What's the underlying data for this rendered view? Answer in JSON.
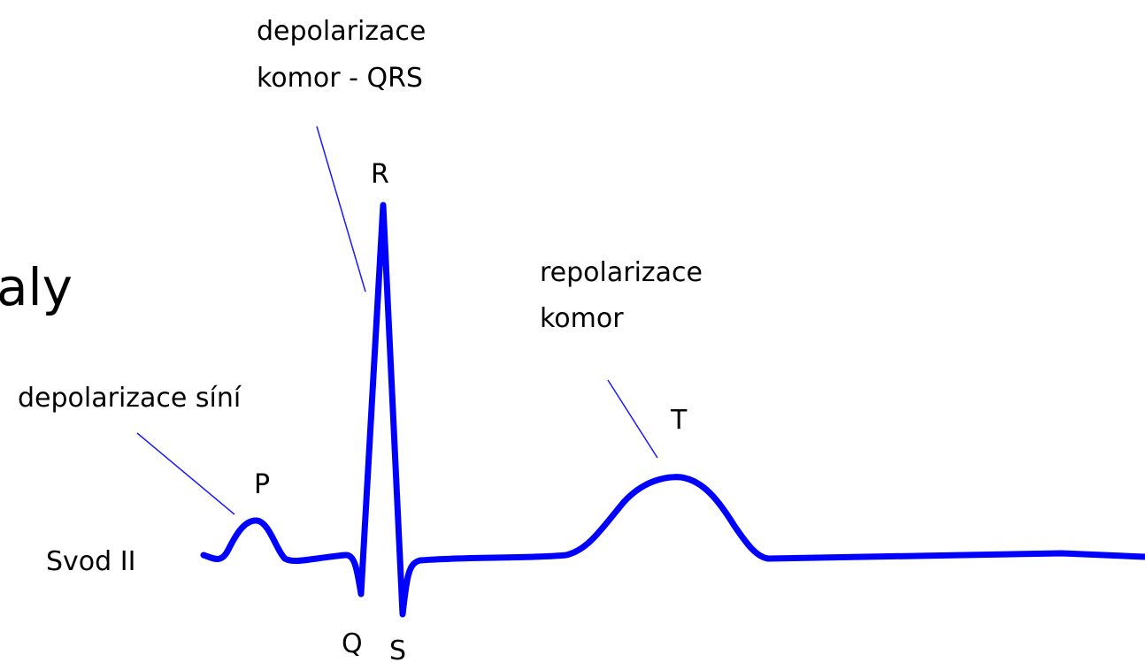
{
  "title_fragment": "aly",
  "lead": "Svod II",
  "waves": {
    "p": "P",
    "q": "Q",
    "r": "R",
    "s": "S",
    "t": "T"
  },
  "annotations": {
    "atria": [
      "depolarizace síní"
    ],
    "qrs": [
      "depolarizace",
      "komor - QRS"
    ],
    "repolarization": [
      "repolarizace",
      "komor"
    ]
  }
}
